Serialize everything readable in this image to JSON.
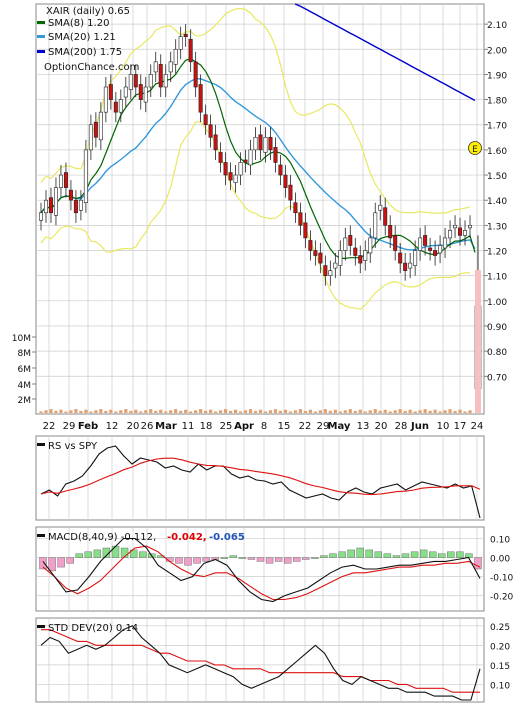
{
  "chart_data": [
    {
      "type": "candlestick",
      "panel": "price",
      "title": "XAIR (daily) 0.65",
      "legend": [
        {
          "label": "SMA(8) 1.20",
          "color": "#006600"
        },
        {
          "label": "SMA(20) 1.21",
          "color": "#3399dd"
        },
        {
          "label": "SMA(200) 1.75",
          "color": "#0000cc"
        }
      ],
      "watermark": "OptionChance.com",
      "ylim": [
        0.55,
        2.18
      ],
      "y_ticks": [
        "2.10",
        "2.00",
        "1.90",
        "1.80",
        "1.70",
        "1.60",
        "1.50",
        "1.40",
        "1.30",
        "1.20",
        "1.10",
        "1.00",
        "0.90",
        "0.80",
        "0.70"
      ],
      "volume_ticks": [
        "10M",
        "8M",
        "6M",
        "4M",
        "2M"
      ],
      "earnings_marker": "E",
      "x_ticks": [
        "22",
        "29",
        "Feb",
        "12",
        "20",
        "26",
        "Mar",
        "11",
        "18",
        "25",
        "Apr",
        "8",
        "15",
        "22",
        "29",
        "May",
        "13",
        "20",
        "28",
        "Jun",
        "10",
        "17",
        "24"
      ],
      "x_bold": [
        "Feb",
        "Mar",
        "Apr",
        "May",
        "Jun"
      ],
      "last_candle": {
        "open": 0.98,
        "high": 1.26,
        "low": 0.65,
        "close": 0.65
      },
      "series_close": [
        1.35,
        1.4,
        1.35,
        1.45,
        1.5,
        1.45,
        1.4,
        1.35,
        1.4,
        1.6,
        1.7,
        1.65,
        1.75,
        1.85,
        1.8,
        1.75,
        1.8,
        1.85,
        1.9,
        1.85,
        1.8,
        1.85,
        1.9,
        1.95,
        1.85,
        1.9,
        1.95,
        2.0,
        2.05,
        2.05,
        1.95,
        1.85,
        1.75,
        1.7,
        1.65,
        1.6,
        1.55,
        1.5,
        1.48,
        1.5,
        1.55,
        1.55,
        1.6,
        1.65,
        1.6,
        1.65,
        1.6,
        1.55,
        1.5,
        1.45,
        1.4,
        1.35,
        1.3,
        1.25,
        1.2,
        1.18,
        1.15,
        1.1,
        1.12,
        1.15,
        1.2,
        1.25,
        1.22,
        1.18,
        1.15,
        1.2,
        1.25,
        1.35,
        1.38,
        1.3,
        1.25,
        1.2,
        1.15,
        1.12,
        1.15,
        1.2,
        1.25,
        1.22,
        1.2,
        1.18,
        1.22,
        1.25,
        1.28,
        1.3,
        1.26,
        1.28,
        1.3,
        0.65
      ]
    },
    {
      "type": "line",
      "panel": "rs",
      "title": "RS vs SPY"
    },
    {
      "type": "bar+line",
      "panel": "macd",
      "title": "MACD(8,40,9) -0.112,",
      "values": [
        "-0.042,",
        "-0.065"
      ],
      "value_colors": [
        "#dd0000",
        "#2255bb"
      ],
      "y_ticks": [
        "0.10",
        "0.00",
        "-0.10",
        "-0.20"
      ]
    },
    {
      "type": "line",
      "panel": "stddev",
      "title": "STD DEV(20) 0.14",
      "y_ticks": [
        "0.25",
        "0.20",
        "0.15",
        "0.10"
      ]
    }
  ]
}
